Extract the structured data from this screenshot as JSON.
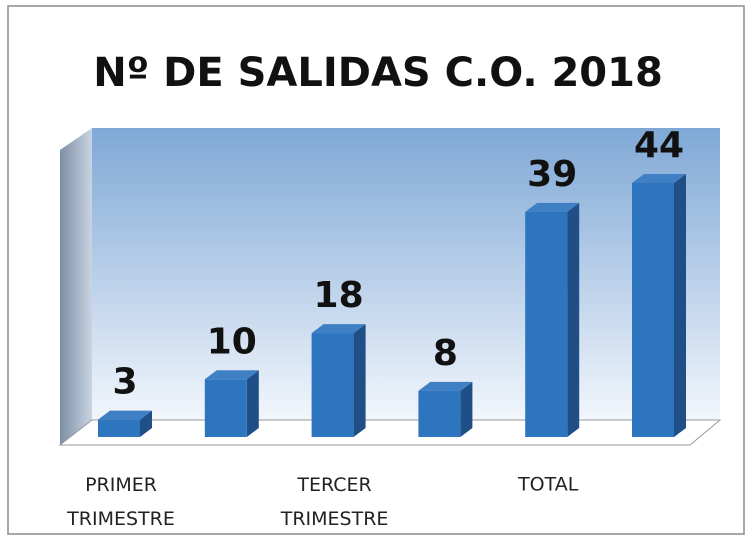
{
  "chart_data": {
    "type": "bar3d",
    "title": "Nº DE SALIDAS C.O. 2018",
    "categories": [
      "PRIMER TRIMESTRE",
      null,
      "TERCER TRIMESTRE",
      null,
      "TOTAL",
      null
    ],
    "values": [
      3,
      10,
      18,
      8,
      39,
      44
    ],
    "color": "#2e75c0"
  }
}
